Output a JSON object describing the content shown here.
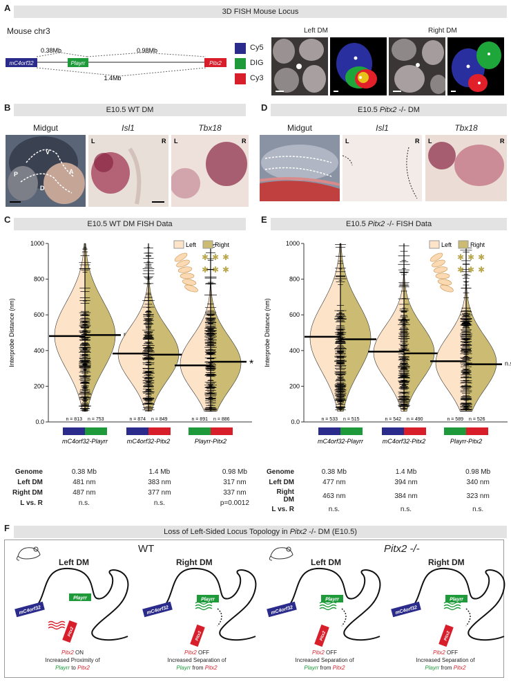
{
  "panelA": {
    "letter": "A",
    "title": "3D FISH Mouse Locus",
    "chr": "Mouse chr3",
    "genes": [
      "mC4orf32",
      "Playrr",
      "Pitx2"
    ],
    "dist1": "0.38Mb",
    "dist2": "0.98Mb",
    "dist3": "1.4Mb",
    "legend": [
      {
        "label": "Cy5",
        "color": "#2b2b8c"
      },
      {
        "label": "DIG",
        "color": "#1e9a3a"
      },
      {
        "label": "Cy3",
        "color": "#d81e2a"
      }
    ],
    "leftDM": "Left DM",
    "rightDM": "Right DM"
  },
  "panelB": {
    "letter": "B",
    "title": "E10.5 WT DM",
    "cols": [
      "Midgut",
      "Isl1",
      "Tbx18"
    ],
    "midgut_labels": [
      "V",
      "P",
      "D",
      "A"
    ],
    "lr": [
      "L",
      "R"
    ]
  },
  "panelD": {
    "letter": "D",
    "title_pre": "E10.5 ",
    "title_it": "Pitx2",
    "title_post": " -/- DM",
    "cols": [
      "Midgut",
      "Isl1",
      "Tbx18"
    ],
    "lr": [
      "L",
      "R"
    ]
  },
  "panelC": {
    "letter": "C",
    "title": "E10.5 WT DM FISH Data",
    "legend": [
      "Left",
      "Right"
    ],
    "stats": {
      "rows": [
        "Genome",
        "Left DM",
        "Right DM",
        "L vs. R"
      ],
      "cols": [
        [
          "0.38 Mb",
          "481 nm",
          "487 nm",
          "n.s."
        ],
        [
          "1.4 Mb",
          "383 nm",
          "377 nm",
          "n.s."
        ],
        [
          "0.98 Mb",
          "317 nm",
          "337 nm",
          "p=0.0012"
        ]
      ]
    }
  },
  "panelE": {
    "letter": "E",
    "title_pre": "E10.5 ",
    "title_it": "Pitx2",
    "title_post": " -/-  FISH Data",
    "legend": [
      "Left",
      "Right"
    ],
    "stats": {
      "rows": [
        "Genome",
        "Left DM",
        "Right DM",
        "L vs. R"
      ],
      "cols": [
        [
          "0.38 Mb",
          "477 nm",
          "463 nm",
          "n.s."
        ],
        [
          "1.4 Mb",
          "394 nm",
          "384 nm",
          "n.s."
        ],
        [
          "0.98 Mb",
          "340 nm",
          "323 nm",
          "n.s."
        ]
      ]
    }
  },
  "chart_data": [
    {
      "type": "violin",
      "title": "E10.5 WT DM FISH Data",
      "ylabel": "Interprobe Distance (nm)",
      "ylim": [
        0,
        1000
      ],
      "yticks": [
        0.0,
        200,
        400,
        600,
        800,
        1000
      ],
      "ytick_labels": [
        "0.0",
        "200",
        "400",
        "600",
        "800",
        "1000"
      ],
      "series_names": [
        "Left",
        "Right"
      ],
      "groups": [
        {
          "label": "mC4orf32-Playrr",
          "left_n": "n = 813",
          "right_n": "n = 753",
          "left_median": 481,
          "right_median": 487,
          "sig": "n.s.",
          "colors": [
            "#2b2b8c",
            "#1e9a3a"
          ]
        },
        {
          "label": "mC4orf32-Pitx2",
          "left_n": "n = 874",
          "right_n": "n = 849",
          "left_median": 383,
          "right_median": 377,
          "sig": "n.s.",
          "colors": [
            "#2b2b8c",
            "#d81e2a"
          ]
        },
        {
          "label": "Playrr-Pitx2",
          "left_n": "n = 891",
          "right_n": "n = 886",
          "left_median": 317,
          "right_median": 337,
          "sig": "*",
          "colors": [
            "#1e9a3a",
            "#d81e2a"
          ]
        }
      ]
    },
    {
      "type": "violin",
      "title": "E10.5 Pitx2 -/-  FISH Data",
      "ylabel": "Interprobe Distance (nm)",
      "ylim": [
        0,
        1000
      ],
      "yticks": [
        0.0,
        200,
        400,
        600,
        800,
        1000
      ],
      "ytick_labels": [
        "0.0",
        "200",
        "400",
        "600",
        "800",
        "1000"
      ],
      "series_names": [
        "Left",
        "Right"
      ],
      "groups": [
        {
          "label": "mC4orf32-Playrr",
          "left_n": "n = 533",
          "right_n": "n = 515",
          "left_median": 477,
          "right_median": 463,
          "sig": "n.s.",
          "colors": [
            "#2b2b8c",
            "#1e9a3a"
          ]
        },
        {
          "label": "mC4orf32-Pitx2",
          "left_n": "n = 542",
          "right_n": "n = 490",
          "left_median": 394,
          "right_median": 384,
          "sig": "n.s.",
          "colors": [
            "#2b2b8c",
            "#d81e2a"
          ]
        },
        {
          "label": "Playrr-Pitx2",
          "left_n": "n = 589",
          "right_n": "n = 526",
          "left_median": 340,
          "right_median": 323,
          "sig": "n.s.",
          "colors": [
            "#1e9a3a",
            "#d81e2a"
          ]
        }
      ]
    }
  ],
  "panelF": {
    "letter": "F",
    "title_pre": "Loss of Left-Sided Locus Topology in ",
    "title_it": "Pitx2",
    "title_post": " -/- DM (E10.5)",
    "wt": "WT",
    "mut": "Pitx2 -/-",
    "leftDM": "Left DM",
    "rightDM": "Right DM",
    "genes": [
      "mC4orf32",
      "Playrr",
      "Pitx2"
    ],
    "captions": [
      {
        "gene": "Pitx2",
        "state": " ON",
        "line2": "Increased Proximity of",
        "a": "Playrr",
        "mid": " to ",
        "b": "Pitx2"
      },
      {
        "gene": "Pitx2",
        "state": " OFF",
        "line2": "Increased Separation of",
        "a": "Playrr",
        "mid": " from ",
        "b": "Pitx2"
      },
      {
        "gene": "Pitx2",
        "state": " OFF",
        "line2": "Increased Separation of",
        "a": "Playrr",
        "mid": " from ",
        "b": "Pitx2"
      },
      {
        "gene": "Pitx2",
        "state": " OFF",
        "line2": "Increased Separation of",
        "a": "Playrr",
        "mid": " from ",
        "b": "Pitx2"
      }
    ]
  }
}
